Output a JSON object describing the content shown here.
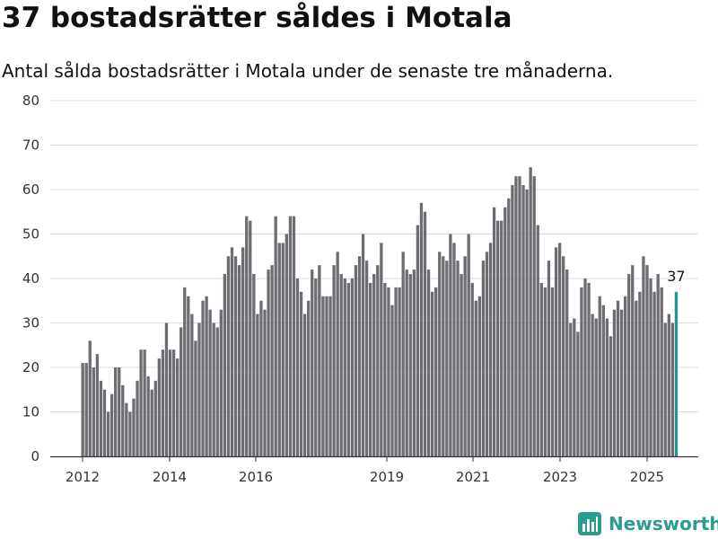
{
  "title": "37 bostadsrätter såldes i Motala",
  "subtitle": "Antal sålda bostadsrätter i Motala under de senaste tre månaderna.",
  "brand": {
    "name": "Newsworthy",
    "icon": "bar-chart-logo-icon"
  },
  "colors": {
    "bar": "#6d6c72",
    "highlight": "#1a9a8e",
    "grid": "#dddddd",
    "axis": "#333333",
    "brand": "#2a9d8f"
  },
  "chart_data": {
    "type": "bar",
    "x_ticks": [
      "2012",
      "2014",
      "2016",
      "2019",
      "2021",
      "2023",
      "2025"
    ],
    "y_ticks": [
      0,
      10,
      20,
      30,
      40,
      50,
      60,
      70,
      80
    ],
    "ylim": [
      0,
      80
    ],
    "grid": true,
    "values": [
      21,
      21,
      26,
      20,
      23,
      17,
      15,
      10,
      14,
      20,
      20,
      16,
      12,
      10,
      13,
      17,
      24,
      24,
      18,
      15,
      17,
      22,
      24,
      30,
      24,
      24,
      22,
      29,
      38,
      36,
      32,
      26,
      30,
      35,
      36,
      33,
      30,
      29,
      33,
      41,
      45,
      47,
      45,
      43,
      47,
      54,
      53,
      41,
      32,
      35,
      33,
      42,
      43,
      54,
      48,
      48,
      50,
      54,
      54,
      40,
      37,
      32,
      35,
      42,
      40,
      43,
      36,
      36,
      36,
      43,
      46,
      41,
      40,
      39,
      40,
      43,
      45,
      50,
      44,
      39,
      41,
      43,
      48,
      39,
      38,
      34,
      38,
      38,
      46,
      42,
      41,
      42,
      52,
      57,
      55,
      42,
      37,
      38,
      46,
      45,
      44,
      50,
      48,
      44,
      41,
      45,
      50,
      39,
      35,
      36,
      44,
      46,
      48,
      56,
      53,
      53,
      56,
      58,
      61,
      63,
      63,
      61,
      60,
      65,
      63,
      52,
      39,
      38,
      44,
      38,
      47,
      48,
      45,
      42,
      30,
      31,
      28,
      38,
      40,
      39,
      32,
      31,
      36,
      34,
      31,
      27,
      33,
      35,
      33,
      36,
      41,
      43,
      35,
      37,
      45,
      43,
      40,
      37,
      41,
      38,
      30,
      32,
      30,
      37
    ],
    "highlight_index": 163,
    "highlight_label": "37"
  }
}
